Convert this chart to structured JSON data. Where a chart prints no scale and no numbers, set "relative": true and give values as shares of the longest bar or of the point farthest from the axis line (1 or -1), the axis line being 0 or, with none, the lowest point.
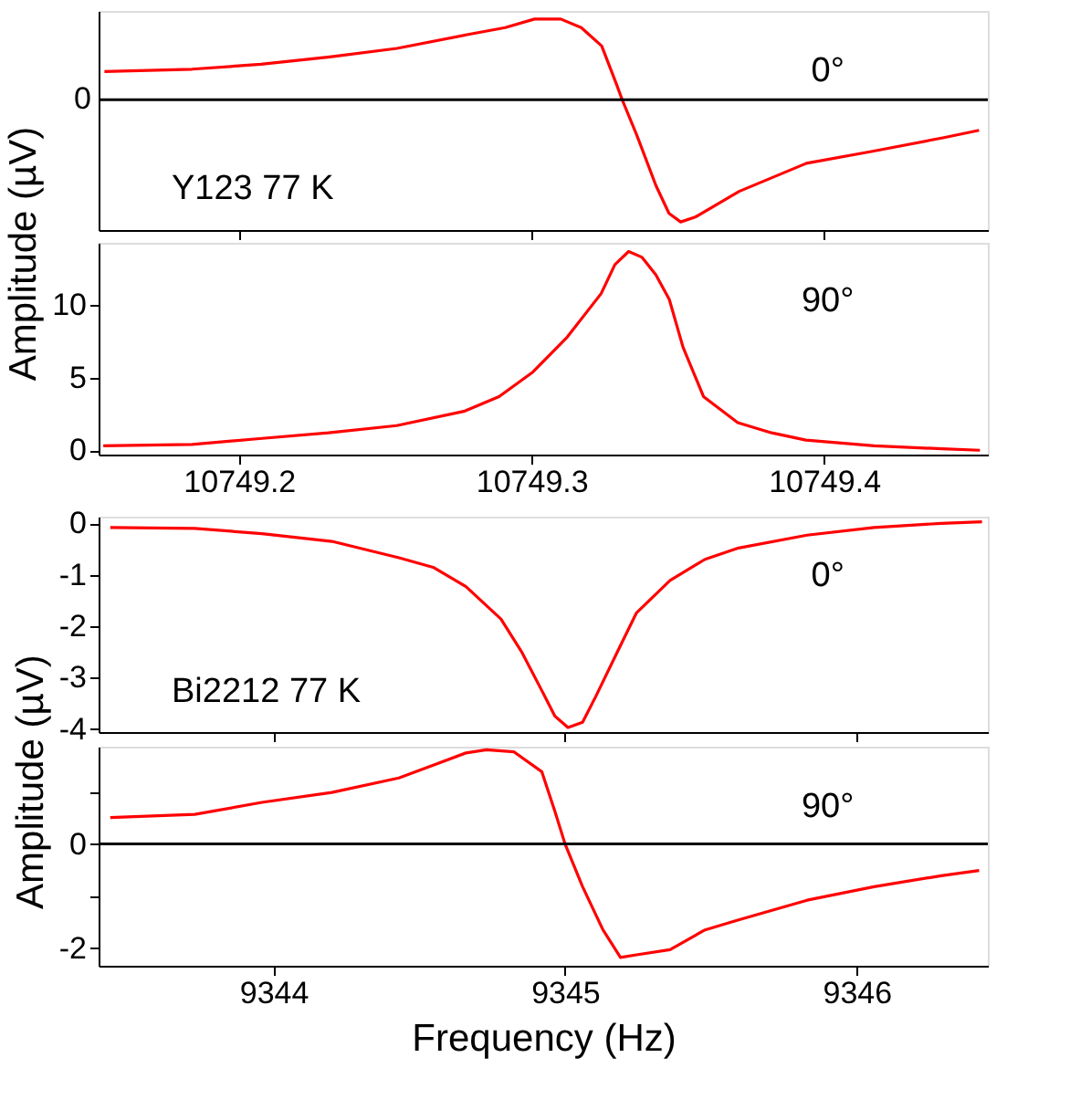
{
  "chart_data": [
    {
      "type": "line",
      "relative": true,
      "ylabel": "Amplitude (µV)",
      "tick_labels": "y",
      "grid": false,
      "xlim": [
        10749.152,
        10749.456
      ],
      "xticks": [
        10749.2,
        10749.3,
        10749.4
      ],
      "x": [
        10749.154,
        10749.184,
        10749.2075,
        10749.231,
        10749.254,
        10749.2775,
        10749.291,
        10749.301,
        10749.31,
        10749.317,
        10749.324,
        10749.329,
        10749.331,
        10749.336,
        10749.3425,
        10749.347,
        10749.351,
        10749.356,
        10749.371,
        10749.394,
        10749.417,
        10749.441,
        10749.453
      ],
      "series": [
        {
          "color": "#ff0000",
          "values": [
            0.23,
            0.25,
            0.29,
            0.35,
            0.42,
            0.53,
            0.59,
            0.66,
            0.66,
            0.59,
            0.44,
            0.13,
            0,
            -0.29,
            -0.7,
            -0.93,
            -1.0,
            -0.96,
            -0.75,
            -0.52,
            -0.42,
            -0.31,
            -0.25
          ]
        }
      ],
      "ref_lines": [
        {
          "axis": "y",
          "value": 0,
          "color": "#000000",
          "label": "0"
        }
      ],
      "annotations": [
        "0°",
        "Y123  77 K"
      ]
    },
    {
      "type": "line",
      "tick_labels": true,
      "grid": false,
      "xlim": [
        10749.152,
        10749.456
      ],
      "xticks": [
        10749.2,
        10749.3,
        10749.4
      ],
      "ylim": [
        -0.3,
        14.3
      ],
      "yticks": [
        0,
        5,
        10
      ],
      "x": [
        10749.1536,
        10749.184,
        10749.207,
        10749.2306,
        10749.2539,
        10749.2772,
        10749.2889,
        10749.3005,
        10749.3122,
        10749.3238,
        10749.3285,
        10749.3332,
        10749.3378,
        10749.3425,
        10749.3471,
        10749.3518,
        10749.3588,
        10749.3705,
        10749.3821,
        10749.3938,
        10749.4171,
        10749.4404,
        10749.4533
      ],
      "series": [
        {
          "color": "#ff0000",
          "values": [
            0.3,
            0.4,
            0.8,
            1.2,
            1.7,
            2.7,
            3.7,
            5.4,
            7.8,
            10.8,
            12.8,
            13.7,
            13.3,
            12.1,
            10.4,
            7.1,
            3.7,
            1.9,
            1.2,
            0.7,
            0.3,
            0.1,
            0.0
          ]
        }
      ],
      "annotations": [
        "90°"
      ]
    },
    {
      "type": "line",
      "ylabel": "Amplitude (µV)",
      "tick_labels": "y",
      "grid": false,
      "xlim": [
        9343.4,
        9346.45
      ],
      "xticks": [
        9344,
        9345,
        9346
      ],
      "ylim": [
        -4.06,
        0.13
      ],
      "yticks": [
        -4,
        -3,
        -2,
        -1,
        0
      ],
      "x": [
        9343.44,
        9343.73,
        9343.96,
        9344.2,
        9344.43,
        9344.55,
        9344.66,
        9344.78,
        9344.85,
        9344.92,
        9344.965,
        9345.01,
        9345.06,
        9345.105,
        9345.175,
        9345.245,
        9345.36,
        9345.48,
        9345.595,
        9345.83,
        9346.06,
        9346.29,
        9346.43
      ],
      "series": [
        {
          "color": "#ff0000",
          "values": [
            -0.08,
            -0.1,
            -0.2,
            -0.35,
            -0.67,
            -0.86,
            -1.23,
            -1.86,
            -2.49,
            -3.25,
            -3.75,
            -3.97,
            -3.87,
            -3.37,
            -2.55,
            -1.74,
            -1.11,
            -0.7,
            -0.48,
            -0.23,
            -0.08,
            0.0,
            0.03
          ]
        }
      ],
      "annotations": [
        "0°",
        "Bi2212  77 K"
      ]
    },
    {
      "type": "line",
      "xlabel": "Frequency (Hz)",
      "tick_labels": true,
      "grid": false,
      "xlim": [
        9343.4,
        9346.45
      ],
      "xticks": [
        9344,
        9345,
        9346
      ],
      "ylim": [
        -2.34,
        1.87
      ],
      "yticks": [
        {
          "value": -2,
          "label": "-2"
        },
        {
          "value": -1,
          "label": null
        },
        0,
        {
          "value": 1,
          "label": null
        }
      ],
      "x": [
        9343.44,
        9343.73,
        9343.96,
        9344.2,
        9344.43,
        9344.55,
        9344.66,
        9344.73,
        9344.825,
        9344.92,
        9344.965,
        9345.0,
        9345.06,
        9345.13,
        9345.19,
        9345.245,
        9345.36,
        9345.48,
        9345.595,
        9345.83,
        9346.06,
        9346.29,
        9346.42
      ],
      "series": [
        {
          "color": "#ff0000",
          "values": [
            0.51,
            0.57,
            0.8,
            0.99,
            1.27,
            1.52,
            1.75,
            1.81,
            1.77,
            1.39,
            0.63,
            0,
            -0.82,
            -1.65,
            -2.18,
            -2.13,
            -2.03,
            -1.65,
            -1.46,
            -1.08,
            -0.82,
            -0.61,
            -0.51
          ]
        }
      ],
      "ref_lines": [
        {
          "axis": "y",
          "value": 0,
          "color": "#000000"
        }
      ],
      "annotations": [
        "90°"
      ]
    }
  ]
}
